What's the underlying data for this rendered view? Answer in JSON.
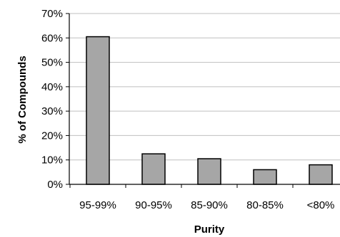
{
  "chart_data": {
    "type": "bar",
    "title": "",
    "xlabel": "Purity",
    "ylabel": "% of Compounds",
    "categories": [
      "95-99%",
      "90-95%",
      "85-90%",
      "80-85%",
      "<80%"
    ],
    "values": [
      60.5,
      12.5,
      10.5,
      6,
      8
    ],
    "ylim": [
      0,
      70
    ],
    "yticks": [
      0,
      10,
      20,
      30,
      40,
      50,
      60,
      70
    ],
    "ytick_labels": [
      "0%",
      "10%",
      "20%",
      "30%",
      "40%",
      "50%",
      "60%",
      "70%"
    ],
    "grid": "horizontal",
    "legend": "none",
    "bar_color": "#a6a6a6",
    "bar_edge_color": "#000000",
    "grid_color": "#bfbfbf"
  }
}
